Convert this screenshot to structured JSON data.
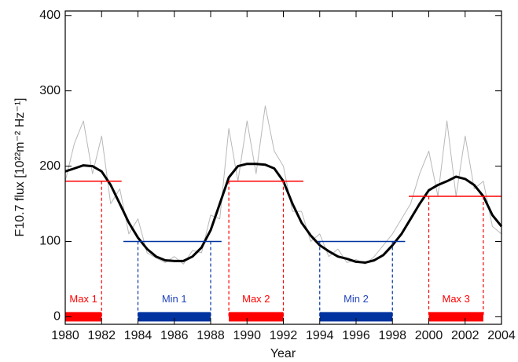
{
  "chart_data": {
    "type": "line",
    "x_label": "Year",
    "y_label": "F10.7 flux [10²²m⁻² Hz⁻¹]",
    "xlim": [
      1980,
      2004
    ],
    "xticks": [
      1980,
      1982,
      1984,
      1986,
      1988,
      1990,
      1992,
      1994,
      1996,
      1998,
      2000,
      2002,
      2004
    ],
    "ylim": [
      -10,
      406
    ],
    "yticks": [
      0,
      100,
      200,
      300,
      400
    ],
    "x": [
      1980,
      1980.5,
      1981,
      1981.5,
      1982,
      1982.5,
      1983,
      1983.5,
      1984,
      1984.5,
      1985,
      1985.5,
      1986,
      1986.5,
      1987,
      1987.5,
      1988,
      1988.5,
      1989,
      1989.5,
      1990,
      1990.5,
      1991,
      1991.5,
      1992,
      1992.5,
      1993,
      1993.5,
      1994,
      1994.5,
      1995,
      1995.5,
      1996,
      1996.5,
      1997,
      1997.5,
      1998,
      1998.5,
      1999,
      1999.5,
      2000,
      2000.5,
      2001,
      2001.5,
      2002,
      2002.5,
      2003,
      2003.5,
      2004
    ],
    "series": [
      {
        "color": "#b8b8b8",
        "width": 1,
        "values": [
          180,
          230,
          260,
          190,
          240,
          150,
          170,
          110,
          130,
          85,
          78,
          72,
          80,
          70,
          88,
          85,
          135,
          130,
          250,
          180,
          260,
          190,
          280,
          220,
          200,
          140,
          140,
          100,
          110,
          80,
          90,
          72,
          76,
          70,
          80,
          95,
          110,
          130,
          150,
          190,
          220,
          160,
          260,
          160,
          240,
          170,
          180,
          120,
          110
        ]
      },
      {
        "color": "#000000",
        "width": 3,
        "values": [
          193,
          197,
          201,
          200,
          193,
          175,
          150,
          125,
          105,
          90,
          80,
          75,
          74,
          74,
          80,
          92,
          115,
          150,
          185,
          200,
          203,
          203,
          202,
          197,
          180,
          150,
          125,
          108,
          95,
          87,
          80,
          77,
          73,
          72,
          75,
          82,
          95,
          110,
          130,
          150,
          168,
          175,
          180,
          186,
          183,
          175,
          160,
          135,
          120
        ]
      }
    ],
    "periods": [
      {
        "label": "Max 1",
        "color": "#ff0000",
        "text_color": "#ff0000",
        "start": 1980,
        "end": 1982,
        "level": 180,
        "line_start": 1980,
        "line_end": 1983.1
      },
      {
        "label": "Min 1",
        "color": "#0033a0",
        "text_color": "#2244bb",
        "start": 1984,
        "end": 1988,
        "level": 100,
        "line_start": 1983.2,
        "line_end": 1988.6
      },
      {
        "label": "Max 2",
        "color": "#ff0000",
        "text_color": "#ff0000",
        "start": 1989,
        "end": 1992,
        "level": 180,
        "line_start": 1989,
        "line_end": 1993.1
      },
      {
        "label": "Min 2",
        "color": "#0033a0",
        "text_color": "#2244bb",
        "start": 1994,
        "end": 1998,
        "level": 100,
        "line_start": 1993.9,
        "line_end": 1998.7
      },
      {
        "label": "Max 3",
        "color": "#ff0000",
        "text_color": "#ff0000",
        "start": 2000,
        "end": 2003,
        "level": 160,
        "line_start": 1998.9,
        "line_end": 2004
      }
    ]
  }
}
